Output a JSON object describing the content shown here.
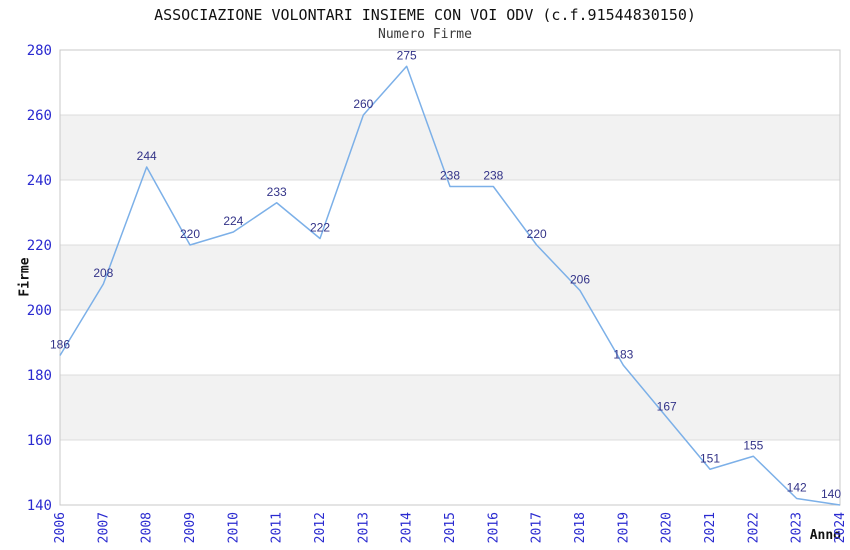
{
  "chart_data": {
    "type": "line",
    "title": "ASSOCIAZIONE VOLONTARI INSIEME CON VOI ODV (c.f.91544830150)",
    "subtitle": "Numero Firme",
    "xlabel": "Anno",
    "ylabel": "Firme",
    "x": [
      "2006",
      "2007",
      "2008",
      "2009",
      "2010",
      "2011",
      "2012",
      "2013",
      "2014",
      "2015",
      "2016",
      "2017",
      "2018",
      "2019",
      "2020",
      "2021",
      "2022",
      "2023",
      "2024"
    ],
    "values": [
      186,
      208,
      244,
      220,
      224,
      233,
      222,
      260,
      275,
      238,
      238,
      220,
      206,
      183,
      167,
      151,
      155,
      142,
      140
    ],
    "ylim": [
      140,
      280
    ],
    "yticks": [
      140,
      160,
      180,
      200,
      220,
      240,
      260,
      280
    ],
    "grid": true,
    "alternating_bands": true,
    "legend_position": "none",
    "data_labels_visible": true,
    "colors": {
      "line": "#7cb0e8",
      "data_label": "#333388",
      "tick_label": "#2a2ad0",
      "title": "#111111",
      "subtitle": "#3a3a3a",
      "band": "#f2f2f2",
      "gridline": "#dcdcdc",
      "border": "#c8c8c8",
      "background": "#ffffff"
    }
  }
}
